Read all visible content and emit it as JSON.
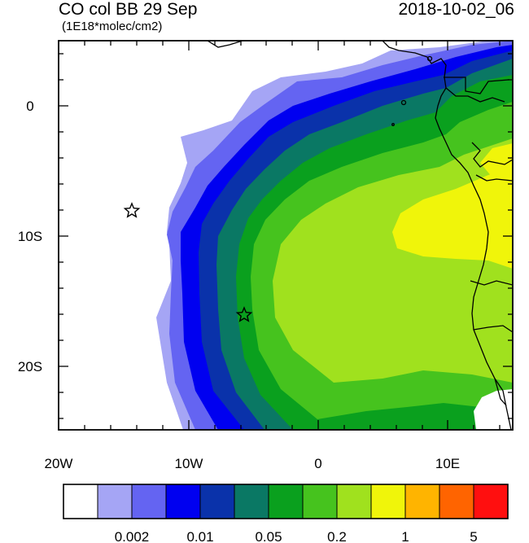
{
  "title": {
    "left": "CO col BB 29 Sep",
    "right": "2018-10-02_06",
    "units": "(1E18*molec/cm2)"
  },
  "axes": {
    "x_ticks": [
      "20W",
      "10W",
      "0",
      "10E"
    ],
    "y_ticks": [
      "0",
      "10S",
      "20S"
    ]
  },
  "colorbar": {
    "colors": [
      "#ffffff",
      "#a5a5f5",
      "#6464f2",
      "#0000f0",
      "#0a32aa",
      "#0a7864",
      "#0aa01e",
      "#46c31e",
      "#a0e11e",
      "#f0f50a",
      "#ffb400",
      "#ff6400",
      "#ff0f0f"
    ],
    "labels": [
      "0.002",
      "0.01",
      "0.05",
      "0.2",
      "1",
      "5"
    ]
  },
  "markers": {
    "names": [
      "star-marker-1",
      "star-marker-2"
    ]
  }
}
